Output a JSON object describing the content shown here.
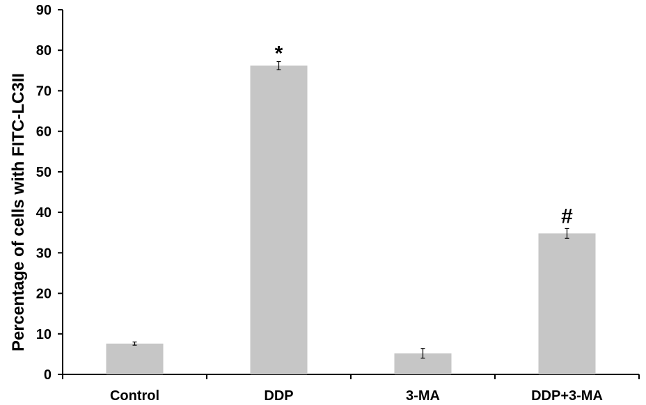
{
  "chart_data": {
    "type": "bar",
    "title": "",
    "xlabel": "",
    "ylabel": "Percentage of cells with FITC-LC3II",
    "ylim": [
      0,
      90
    ],
    "yticks": [
      0,
      10,
      20,
      30,
      40,
      50,
      60,
      70,
      80,
      90
    ],
    "categories": [
      "Control",
      "DDP",
      "3-MA",
      "DDP+3-MA"
    ],
    "values": [
      7.6,
      76.2,
      5.2,
      34.8
    ],
    "errors": [
      0.4,
      1.0,
      1.2,
      1.2
    ],
    "annotations": [
      "",
      "*",
      "",
      "#"
    ],
    "bar_color": "#c6c6c6",
    "grid": false,
    "legend": "none"
  }
}
